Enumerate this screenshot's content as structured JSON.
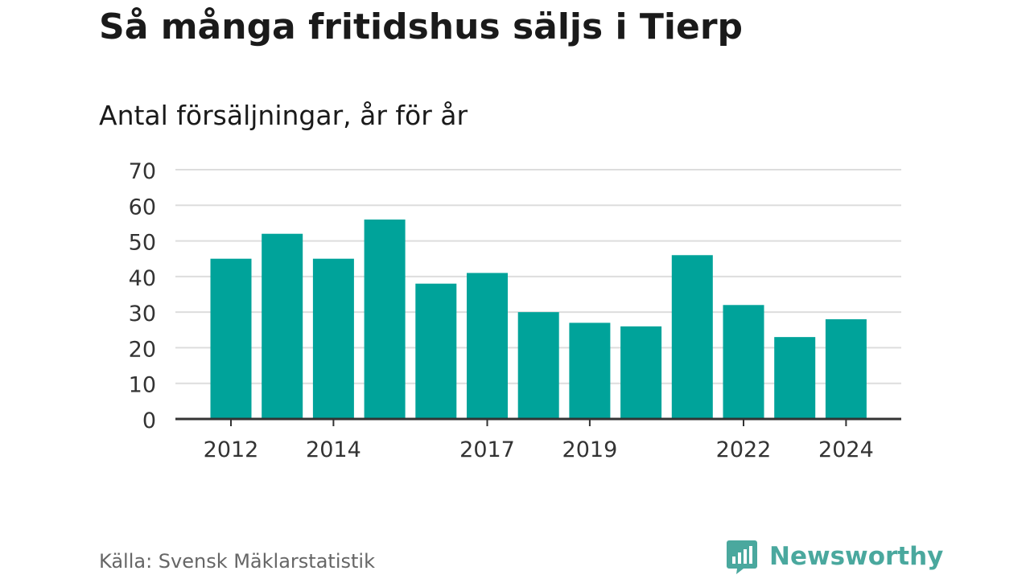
{
  "title": "Så många fritidshus säljs i Tierp",
  "subtitle": "Antal försäljningar, år för år",
  "source": "Källa: Svensk Mäklarstatistik",
  "brand": {
    "name": "Newsworthy",
    "icon": "newsworthy-logo-icon",
    "color": "#4aa89e"
  },
  "chart_data": {
    "type": "bar",
    "categories": [
      "2012",
      "2013",
      "2014",
      "2015",
      "2016",
      "2017",
      "2018",
      "2019",
      "2020",
      "2021",
      "2022",
      "2023",
      "2024"
    ],
    "series": [
      {
        "values": [
          45,
          52,
          45,
          56,
          38,
          41,
          30,
          27,
          26,
          46,
          32,
          23,
          28
        ]
      }
    ],
    "x_tick_labels": [
      "2012",
      "2014",
      "2017",
      "2019",
      "2022",
      "2024"
    ],
    "y_ticks": [
      0,
      10,
      20,
      30,
      40,
      50,
      60,
      70
    ],
    "ylim": [
      0,
      70
    ],
    "grid": true,
    "bar_color": "#00a39a",
    "grid_color": "#dddddd",
    "axis_color": "#333333"
  }
}
